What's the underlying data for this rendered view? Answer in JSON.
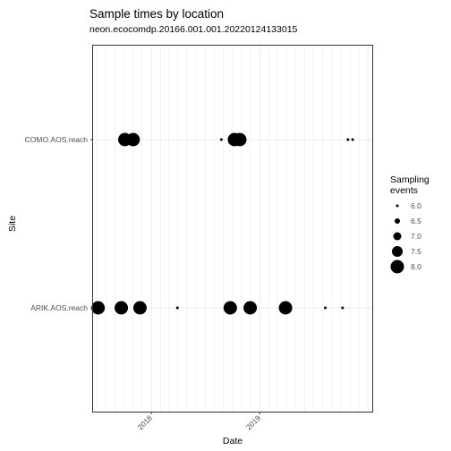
{
  "chart_data": {
    "type": "scatter",
    "title": "Sample times by location",
    "subtitle": "neon.ecocomdp.20166.001.001.20220124133015",
    "xlabel": "Date",
    "ylabel": "Site",
    "xlim": [
      "2017-06-19",
      "2020-01-15"
    ],
    "x_ticks": [
      "2018",
      "2019"
    ],
    "categories": [
      "COMO.AOS.reach",
      "ARIK.AOS.reach"
    ],
    "grid": true,
    "legend": {
      "title": [
        "Sampling",
        "events"
      ],
      "position": "right",
      "values": [
        "6.0",
        "6.5",
        "7.0",
        "7.5",
        "8.0"
      ]
    },
    "size_range": [
      6,
      8
    ],
    "points": [
      {
        "site": "COMO.AOS.reach",
        "date": "2017-10-04",
        "events": 8
      },
      {
        "site": "COMO.AOS.reach",
        "date": "2017-11-01",
        "events": 8
      },
      {
        "site": "COMO.AOS.reach",
        "date": "2018-08-25",
        "events": 6
      },
      {
        "site": "COMO.AOS.reach",
        "date": "2018-10-08",
        "events": 8
      },
      {
        "site": "COMO.AOS.reach",
        "date": "2018-10-26",
        "events": 8
      },
      {
        "site": "COMO.AOS.reach",
        "date": "2019-10-25",
        "events": 6
      },
      {
        "site": "COMO.AOS.reach",
        "date": "2019-11-10",
        "events": 6
      },
      {
        "site": "ARIK.AOS.reach",
        "date": "2017-07-06",
        "events": 8
      },
      {
        "site": "ARIK.AOS.reach",
        "date": "2017-09-22",
        "events": 8
      },
      {
        "site": "ARIK.AOS.reach",
        "date": "2017-11-24",
        "events": 8
      },
      {
        "site": "ARIK.AOS.reach",
        "date": "2018-03-30",
        "events": 6
      },
      {
        "site": "ARIK.AOS.reach",
        "date": "2018-09-24",
        "events": 8
      },
      {
        "site": "ARIK.AOS.reach",
        "date": "2018-11-30",
        "events": 8
      },
      {
        "site": "ARIK.AOS.reach",
        "date": "2019-03-29",
        "events": 8
      },
      {
        "site": "ARIK.AOS.reach",
        "date": "2019-08-10",
        "events": 6
      },
      {
        "site": "ARIK.AOS.reach",
        "date": "2019-10-07",
        "events": 6
      }
    ]
  }
}
